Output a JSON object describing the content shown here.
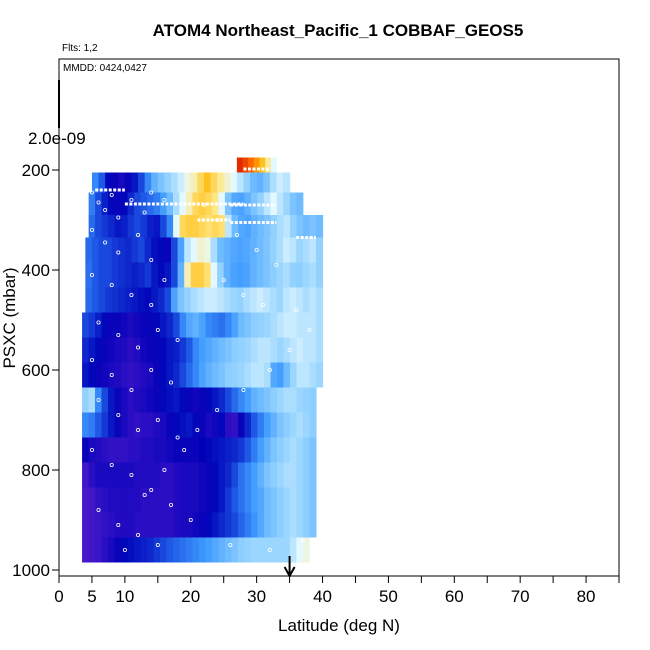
{
  "chart_data": {
    "type": "heatmap",
    "title": "ATOM4 Northeast_Pacific_1 COBBAF_GEOS5",
    "flights_label": "Flts: 1,2",
    "dates_label": "MMDD: 0424,0427",
    "colorbar_max_label": "2.0e-09",
    "xlabel": "Latitude (deg N)",
    "ylabel": "PSXC (mbar)",
    "xlim": [
      0,
      85
    ],
    "ylim": [
      1000,
      0
    ],
    "x_ticks": [
      0,
      5,
      10,
      20,
      30,
      40,
      50,
      60,
      70,
      80
    ],
    "y_ticks": [
      200,
      400,
      600,
      800,
      1000
    ],
    "marker_arrow_lat": 35,
    "colormap_stops": [
      "#5a1fd0",
      "#0000b8",
      "#1f5ae6",
      "#3f9bff",
      "#8fd0ff",
      "#e8faff",
      "#ffe680",
      "#ffb400",
      "#ff6000",
      "#c80000"
    ],
    "bands": [
      {
        "p_top": 175,
        "p_bot": 205,
        "lat_start": 27,
        "lat_end": 33,
        "values": [
          0.95,
          0.92,
          0.88,
          0.82,
          0.75,
          0.65,
          0.55
        ]
      },
      {
        "p_top": 205,
        "p_bot": 245,
        "lat_start": 5,
        "lat_end": 35,
        "values": [
          0.3,
          0.22,
          0.12,
          0.1,
          0.08,
          0.1,
          0.14,
          0.2,
          0.3,
          0.38,
          0.42,
          0.45,
          0.48,
          0.52,
          0.58,
          0.62,
          0.7,
          0.75,
          0.7,
          0.65,
          0.6,
          0.55,
          0.5,
          0.45,
          0.4,
          0.38,
          0.42,
          0.48,
          0.52,
          0.5
        ]
      },
      {
        "p_top": 245,
        "p_bot": 290,
        "lat_start": 4.5,
        "lat_end": 37,
        "values": [
          0.28,
          0.2,
          0.15,
          0.12,
          0.1,
          0.12,
          0.16,
          0.2,
          0.22,
          0.25,
          0.28,
          0.34,
          0.4,
          0.48,
          0.55,
          0.62,
          0.7,
          0.72,
          0.7,
          0.66,
          0.55,
          0.42,
          0.36,
          0.35,
          0.38,
          0.42,
          0.45,
          0.5,
          0.55,
          0.5,
          0.46,
          0.42,
          0.4
        ]
      },
      {
        "p_top": 290,
        "p_bot": 335,
        "lat_start": 4.5,
        "lat_end": 40,
        "values": [
          0.25,
          0.2,
          0.18,
          0.16,
          0.14,
          0.15,
          0.18,
          0.2,
          0.18,
          0.15,
          0.14,
          0.2,
          0.3,
          0.55,
          0.7,
          0.72,
          0.72,
          0.7,
          0.68,
          0.7,
          0.68,
          0.5,
          0.4,
          0.36,
          0.35,
          0.38,
          0.4,
          0.42,
          0.45,
          0.48,
          0.5,
          0.45,
          0.42,
          0.4,
          0.42,
          0.4
        ]
      },
      {
        "p_top": 335,
        "p_bot": 385,
        "lat_start": 4,
        "lat_end": 40,
        "values": [
          0.25,
          0.22,
          0.2,
          0.2,
          0.18,
          0.17,
          0.16,
          0.18,
          0.2,
          0.16,
          0.13,
          0.12,
          0.1,
          0.2,
          0.35,
          0.5,
          0.55,
          0.6,
          0.58,
          0.48,
          0.4,
          0.38,
          0.36,
          0.35,
          0.36,
          0.38,
          0.4,
          0.42,
          0.45,
          0.48,
          0.52,
          0.5,
          0.46,
          0.48,
          0.5,
          0.45
        ]
      },
      {
        "p_top": 385,
        "p_bot": 435,
        "lat_start": 4,
        "lat_end": 40,
        "values": [
          0.26,
          0.22,
          0.2,
          0.2,
          0.18,
          0.17,
          0.16,
          0.15,
          0.16,
          0.18,
          0.14,
          0.12,
          0.14,
          0.2,
          0.38,
          0.62,
          0.72,
          0.72,
          0.68,
          0.55,
          0.45,
          0.38,
          0.35,
          0.34,
          0.35,
          0.38,
          0.4,
          0.42,
          0.44,
          0.46,
          0.48,
          0.45,
          0.44,
          0.46,
          0.48,
          0.45
        ]
      },
      {
        "p_top": 435,
        "p_bot": 485,
        "lat_start": 4,
        "lat_end": 40,
        "values": [
          0.25,
          0.22,
          0.2,
          0.18,
          0.17,
          0.16,
          0.15,
          0.14,
          0.13,
          0.12,
          0.14,
          0.16,
          0.2,
          0.35,
          0.42,
          0.45,
          0.48,
          0.5,
          0.52,
          0.52,
          0.5,
          0.48,
          0.46,
          0.45,
          0.48,
          0.5,
          0.52,
          0.5,
          0.48,
          0.46,
          0.5,
          0.52,
          0.5,
          0.48,
          0.5,
          0.48
        ]
      },
      {
        "p_top": 485,
        "p_bot": 535,
        "lat_start": 3.5,
        "lat_end": 40,
        "values": [
          0.2,
          0.18,
          0.15,
          0.12,
          0.1,
          0.1,
          0.09,
          0.08,
          0.09,
          0.1,
          0.1,
          0.12,
          0.14,
          0.16,
          0.2,
          0.3,
          0.36,
          0.38,
          0.35,
          0.3,
          0.28,
          0.26,
          0.3,
          0.35,
          0.4,
          0.42,
          0.44,
          0.45,
          0.46,
          0.48,
          0.5,
          0.52,
          0.52,
          0.5,
          0.5,
          0.5,
          0.48
        ]
      },
      {
        "p_top": 535,
        "p_bot": 585,
        "lat_start": 3.5,
        "lat_end": 40,
        "values": [
          0.16,
          0.14,
          0.12,
          0.1,
          0.09,
          0.08,
          0.07,
          0.06,
          0.07,
          0.09,
          0.1,
          0.1,
          0.12,
          0.14,
          0.15,
          0.18,
          0.22,
          0.3,
          0.34,
          0.36,
          0.38,
          0.4,
          0.42,
          0.44,
          0.45,
          0.46,
          0.48,
          0.5,
          0.5,
          0.48,
          0.46,
          0.48,
          0.5,
          0.52,
          0.5,
          0.5,
          0.48
        ]
      },
      {
        "p_top": 585,
        "p_bot": 635,
        "lat_start": 3.5,
        "lat_end": 40,
        "values": [
          0.14,
          0.12,
          0.1,
          0.09,
          0.08,
          0.07,
          0.06,
          0.05,
          0.06,
          0.07,
          0.08,
          0.1,
          0.12,
          0.14,
          0.16,
          0.2,
          0.25,
          0.3,
          0.35,
          0.38,
          0.4,
          0.42,
          0.44,
          0.45,
          0.46,
          0.48,
          0.5,
          0.5,
          0.48,
          0.36,
          0.34,
          0.4,
          0.46,
          0.5,
          0.5,
          0.48,
          0.46
        ]
      },
      {
        "p_top": 635,
        "p_bot": 685,
        "lat_start": 3.5,
        "lat_end": 39,
        "values": [
          0.45,
          0.48,
          0.3,
          0.2,
          0.14,
          0.1,
          0.08,
          0.06,
          0.07,
          0.08,
          0.09,
          0.1,
          0.12,
          0.13,
          0.14,
          0.12,
          0.1,
          0.09,
          0.1,
          0.12,
          0.14,
          0.16,
          0.2,
          0.25,
          0.3,
          0.34,
          0.38,
          0.4,
          0.42,
          0.44,
          0.46,
          0.48,
          0.48,
          0.46,
          0.45,
          0.44
        ]
      },
      {
        "p_top": 685,
        "p_bot": 735,
        "lat_start": 3.5,
        "lat_end": 39,
        "values": [
          0.3,
          0.28,
          0.22,
          0.18,
          0.14,
          0.1,
          0.08,
          0.06,
          0.05,
          0.06,
          0.06,
          0.07,
          0.08,
          0.1,
          0.12,
          0.13,
          0.14,
          0.12,
          0.1,
          0.08,
          0.09,
          0.12,
          0.06,
          0.05,
          0.1,
          0.16,
          0.22,
          0.28,
          0.34,
          0.38,
          0.42,
          0.44,
          0.46,
          0.48,
          0.46,
          0.44
        ]
      },
      {
        "p_top": 735,
        "p_bot": 785,
        "lat_start": 3.5,
        "lat_end": 39,
        "values": [
          0.1,
          0.08,
          0.07,
          0.06,
          0.05,
          0.05,
          0.05,
          0.06,
          0.06,
          0.07,
          0.07,
          0.08,
          0.08,
          0.09,
          0.1,
          0.1,
          0.1,
          0.1,
          0.11,
          0.12,
          0.13,
          0.14,
          0.15,
          0.16,
          0.18,
          0.22,
          0.28,
          0.34,
          0.38,
          0.42,
          0.44,
          0.46,
          0.48,
          0.46,
          0.44,
          0.42
        ]
      },
      {
        "p_top": 785,
        "p_bot": 835,
        "lat_start": 3.5,
        "lat_end": 39,
        "values": [
          0.03,
          0.06,
          0.08,
          0.08,
          0.08,
          0.08,
          0.08,
          0.08,
          0.07,
          0.07,
          0.07,
          0.07,
          0.06,
          0.06,
          0.07,
          0.08,
          0.08,
          0.08,
          0.09,
          0.1,
          0.12,
          0.14,
          0.16,
          0.2,
          0.26,
          0.3,
          0.34,
          0.38,
          0.42,
          0.44,
          0.46,
          0.48,
          0.48,
          0.46,
          0.44,
          0.42
        ]
      },
      {
        "p_top": 835,
        "p_bot": 885,
        "lat_start": 3.5,
        "lat_end": 39,
        "values": [
          0.02,
          0.03,
          0.05,
          0.06,
          0.07,
          0.07,
          0.07,
          0.07,
          0.07,
          0.06,
          0.06,
          0.06,
          0.06,
          0.06,
          0.07,
          0.08,
          0.08,
          0.08,
          0.09,
          0.1,
          0.12,
          0.14,
          0.18,
          0.22,
          0.26,
          0.3,
          0.34,
          0.36,
          0.4,
          0.42,
          0.44,
          0.46,
          0.48,
          0.46,
          0.44,
          0.42
        ]
      },
      {
        "p_top": 885,
        "p_bot": 935,
        "lat_start": 3.5,
        "lat_end": 39,
        "values": [
          0.02,
          0.03,
          0.04,
          0.05,
          0.06,
          0.07,
          0.07,
          0.07,
          0.06,
          0.06,
          0.06,
          0.06,
          0.06,
          0.06,
          0.07,
          0.08,
          0.08,
          0.09,
          0.1,
          0.12,
          0.14,
          0.16,
          0.18,
          0.2,
          0.24,
          0.28,
          0.32,
          0.36,
          0.4,
          0.42,
          0.44,
          0.46,
          0.48,
          0.46,
          0.44,
          0.42
        ]
      },
      {
        "p_top": 935,
        "p_bot": 985,
        "lat_start": 3.5,
        "lat_end": 38,
        "values": [
          0.02,
          0.03,
          0.04,
          0.06,
          0.08,
          0.1,
          0.12,
          0.13,
          0.14,
          0.15,
          0.16,
          0.18,
          0.2,
          0.22,
          0.24,
          0.26,
          0.28,
          0.3,
          0.32,
          0.34,
          0.36,
          0.38,
          0.4,
          0.42,
          0.44,
          0.45,
          0.46,
          0.46,
          0.46,
          0.46,
          0.46,
          0.46,
          0.5,
          0.55,
          0.58
        ]
      }
    ],
    "flight_track_segments": [
      {
        "lat1": 5.5,
        "lat2": 10,
        "p1": 240,
        "p2": 240
      },
      {
        "lat1": 10,
        "lat2": 28,
        "p1": 268,
        "p2": 268
      },
      {
        "lat1": 21,
        "lat2": 26,
        "p1": 300,
        "p2": 300
      },
      {
        "lat1": 26,
        "lat2": 33,
        "p1": 270,
        "p2": 270
      },
      {
        "lat1": 26,
        "lat2": 33,
        "p1": 305,
        "p2": 305
      },
      {
        "lat1": 28,
        "lat2": 32,
        "p1": 198,
        "p2": 198
      },
      {
        "lat1": 36,
        "lat2": 39,
        "p1": 335,
        "p2": 335
      }
    ],
    "sample_points": [
      [
        5,
        245
      ],
      [
        6,
        265
      ],
      [
        7,
        280
      ],
      [
        8,
        250
      ],
      [
        9,
        295
      ],
      [
        11,
        260
      ],
      [
        13,
        285
      ],
      [
        14,
        245
      ],
      [
        16,
        260
      ],
      [
        5,
        320
      ],
      [
        7,
        345
      ],
      [
        9,
        365
      ],
      [
        12,
        330
      ],
      [
        14,
        380
      ],
      [
        5,
        410
      ],
      [
        8,
        430
      ],
      [
        11,
        450
      ],
      [
        14,
        470
      ],
      [
        16,
        420
      ],
      [
        6,
        505
      ],
      [
        9,
        530
      ],
      [
        12,
        555
      ],
      [
        15,
        520
      ],
      [
        18,
        540
      ],
      [
        5,
        580
      ],
      [
        8,
        610
      ],
      [
        11,
        640
      ],
      [
        14,
        600
      ],
      [
        17,
        625
      ],
      [
        6,
        660
      ],
      [
        9,
        690
      ],
      [
        12,
        720
      ],
      [
        15,
        700
      ],
      [
        18,
        735
      ],
      [
        5,
        760
      ],
      [
        8,
        790
      ],
      [
        11,
        810
      ],
      [
        14,
        840
      ],
      [
        17,
        870
      ],
      [
        6,
        880
      ],
      [
        9,
        910
      ],
      [
        12,
        930
      ],
      [
        15,
        950
      ],
      [
        10,
        960
      ],
      [
        22,
        270
      ],
      [
        24,
        300
      ],
      [
        27,
        330
      ],
      [
        30,
        360
      ],
      [
        33,
        390
      ],
      [
        25,
        420
      ],
      [
        28,
        450
      ],
      [
        31,
        470
      ],
      [
        36,
        480
      ],
      [
        38,
        520
      ],
      [
        35,
        560
      ],
      [
        32,
        600
      ],
      [
        28,
        640
      ],
      [
        24,
        680
      ],
      [
        21,
        720
      ],
      [
        19,
        760
      ],
      [
        16,
        800
      ],
      [
        13,
        850
      ],
      [
        20,
        900
      ],
      [
        26,
        950
      ],
      [
        32,
        960
      ],
      [
        37,
        940
      ]
    ]
  }
}
